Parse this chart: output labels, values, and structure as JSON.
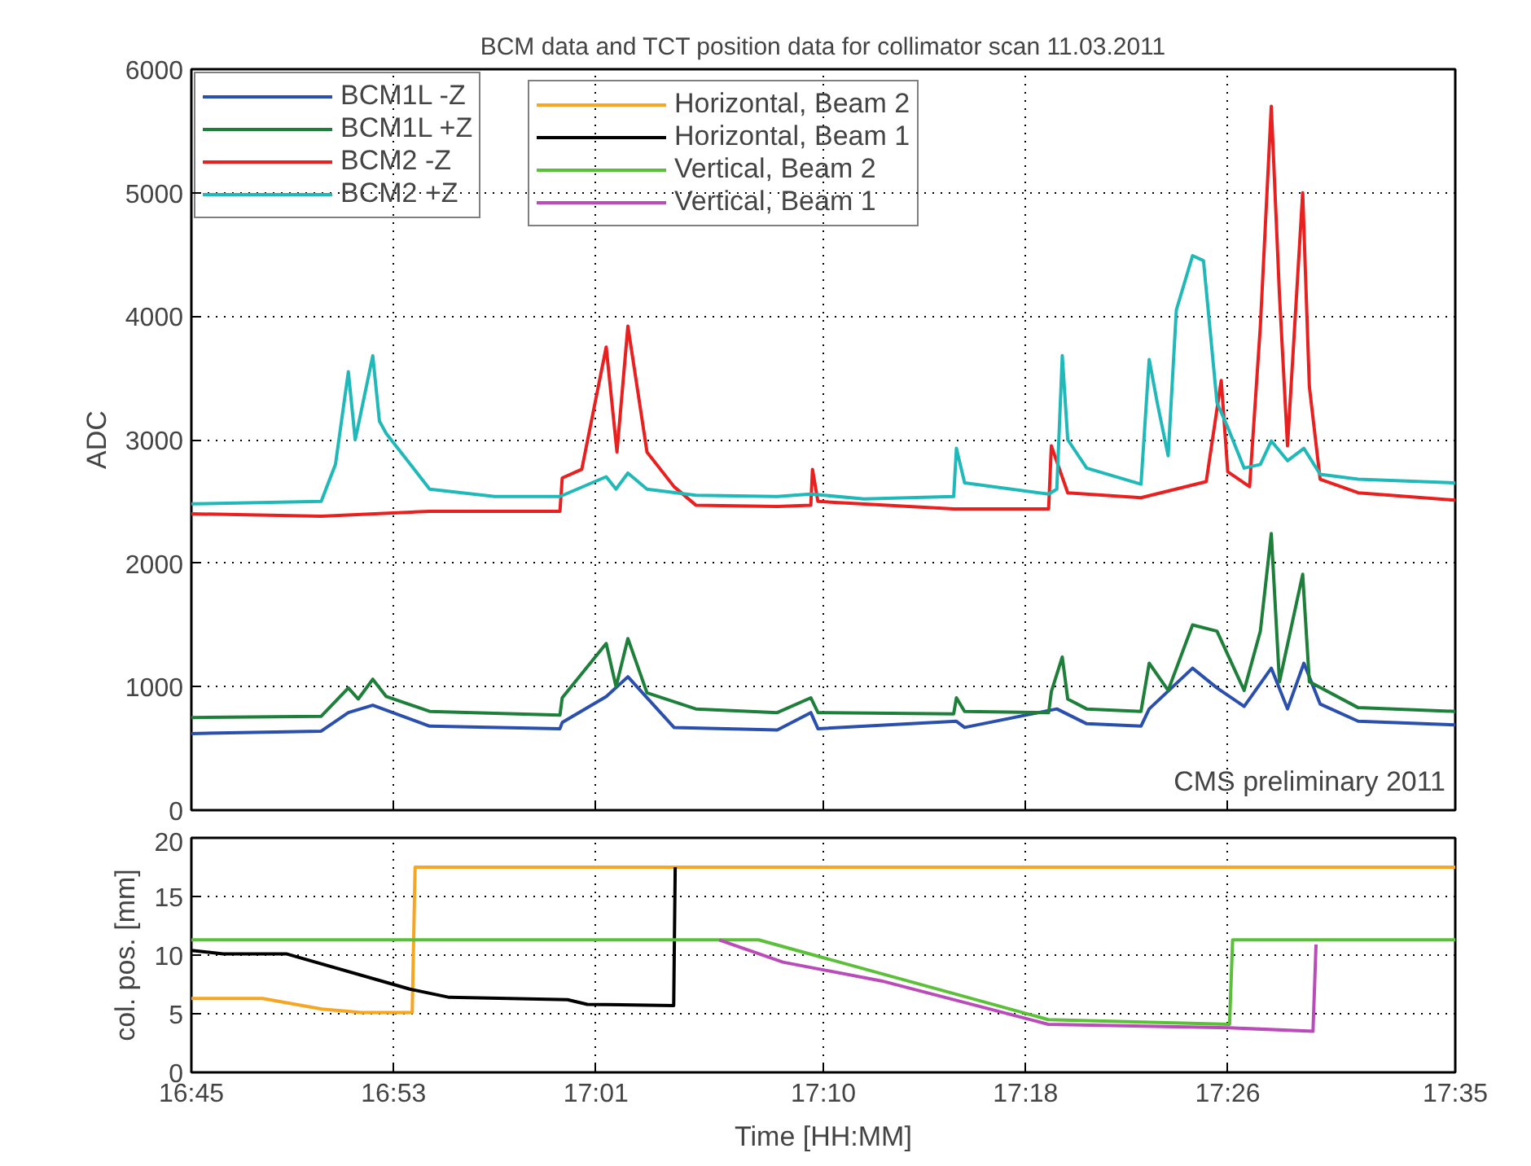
{
  "chart_data": [
    {
      "type": "line",
      "title": "BCM data and TCT position data for collimator scan 11.03.2011",
      "ylabel": "ADC",
      "annotations": [
        "CMS preliminary 2011"
      ],
      "xlim": [
        16.75,
        17.5833
      ],
      "xticks": [
        {
          "value": 16.75,
          "label": null
        },
        {
          "value": 16.8833,
          "label": null
        },
        {
          "value": 17.0167,
          "label": null
        },
        {
          "value": 17.1667,
          "label": null
        },
        {
          "value": 17.3,
          "label": null
        },
        {
          "value": 17.4333,
          "label": null
        },
        {
          "value": 17.5833,
          "label": null
        }
      ],
      "ylim": [
        0,
        6000
      ],
      "yticks": [
        0,
        1000,
        2000,
        3000,
        4000,
        5000,
        6000
      ],
      "tick_labels": "y",
      "grid": true,
      "legend": "top left",
      "line_style": "solid",
      "marker": "none",
      "series": [
        {
          "name": "BCM1L -Z",
          "color": "#2a4fad",
          "x": [
            16.75,
            16.8356,
            16.8535,
            16.8696,
            16.9071,
            16.993,
            16.9945,
            17.0235,
            17.0378,
            17.0682,
            17.1363,
            17.1584,
            17.1631,
            17.2544,
            17.2598,
            17.3206,
            17.3403,
            17.3761,
            17.3815,
            17.4101,
            17.4262,
            17.4441,
            17.462,
            17.4727,
            17.4835,
            17.4942,
            17.5193,
            17.5833
          ],
          "values": [
            620,
            640,
            790,
            850,
            680,
            660,
            710,
            920,
            1080,
            670,
            650,
            790,
            660,
            720,
            670,
            820,
            700,
            680,
            820,
            1150,
            990,
            840,
            1150,
            820,
            1190,
            860,
            720,
            690
          ]
        },
        {
          "name": "BCM1L +Z",
          "color": "#1e7f3a",
          "x": [
            16.75,
            16.8356,
            16.8535,
            16.86,
            16.8696,
            16.8785,
            16.9071,
            16.993,
            16.9945,
            17.0235,
            17.03,
            17.0378,
            17.0504,
            17.0826,
            17.1363,
            17.1584,
            17.1631,
            17.2526,
            17.2544,
            17.2598,
            17.3152,
            17.317,
            17.3242,
            17.3278,
            17.3403,
            17.3761,
            17.3815,
            17.394,
            17.4101,
            17.4262,
            17.4441,
            17.4548,
            17.462,
            17.4674,
            17.4827,
            17.4871,
            17.5193,
            17.5833
          ],
          "values": [
            750,
            760,
            990,
            900,
            1060,
            920,
            800,
            770,
            910,
            1350,
            1000,
            1390,
            950,
            820,
            790,
            910,
            790,
            780,
            910,
            800,
            790,
            960,
            1240,
            900,
            820,
            800,
            1190,
            970,
            1500,
            1450,
            970,
            1450,
            2240,
            1040,
            1910,
            1040,
            830,
            800
          ]
        },
        {
          "name": "BCM2 -Z",
          "color": "#e82020",
          "x": [
            16.75,
            16.8356,
            16.9071,
            16.993,
            16.9945,
            17.0074,
            17.0235,
            17.0306,
            17.0378,
            17.0504,
            17.0682,
            17.0826,
            17.1363,
            17.1584,
            17.1595,
            17.1631,
            17.2526,
            17.3152,
            17.317,
            17.3278,
            17.3761,
            17.4191,
            17.429,
            17.4333,
            17.4477,
            17.4548,
            17.462,
            17.4674,
            17.4727,
            17.4827,
            17.4871,
            17.4942,
            17.5193,
            17.5833
          ],
          "values": [
            2400,
            2380,
            2420,
            2420,
            2690,
            2760,
            3750,
            2900,
            3920,
            2900,
            2620,
            2470,
            2460,
            2470,
            2760,
            2500,
            2440,
            2440,
            2950,
            2570,
            2530,
            2660,
            3480,
            2740,
            2620,
            3920,
            5700,
            4170,
            2950,
            5000,
            3430,
            2680,
            2570,
            2510
          ]
        },
        {
          "name": "BCM2 +Z",
          "color": "#20b8b8",
          "x": [
            16.75,
            16.8356,
            16.845,
            16.8535,
            16.858,
            16.8606,
            16.8696,
            16.874,
            16.8785,
            16.9071,
            16.95,
            16.993,
            17.0235,
            17.03,
            17.0378,
            17.0504,
            17.0826,
            17.1363,
            17.1584,
            17.1935,
            17.2526,
            17.2544,
            17.2598,
            17.3152,
            17.3206,
            17.3242,
            17.3278,
            17.3403,
            17.3761,
            17.3815,
            17.3868,
            17.394,
            17.3994,
            17.4101,
            17.4173,
            17.4262,
            17.4333,
            17.4441,
            17.4548,
            17.462,
            17.4727,
            17.4835,
            17.4942,
            17.5193,
            17.5833
          ],
          "values": [
            2480,
            2500,
            2800,
            3550,
            3000,
            3150,
            3680,
            3150,
            3050,
            2600,
            2540,
            2540,
            2700,
            2600,
            2730,
            2600,
            2550,
            2540,
            2560,
            2520,
            2540,
            2930,
            2650,
            2560,
            2600,
            3680,
            3000,
            2770,
            2640,
            3650,
            3300,
            2870,
            4050,
            4490,
            4450,
            3300,
            3100,
            2770,
            2800,
            2990,
            2830,
            2930,
            2720,
            2680,
            2650
          ]
        }
      ]
    },
    {
      "type": "line",
      "xlabel": "Time [HH:MM]",
      "ylabel": "col. pos. [mm]",
      "xlim": [
        16.75,
        17.5833
      ],
      "xticks": [
        {
          "value": 16.75,
          "label": "16:45"
        },
        {
          "value": 16.8833,
          "label": "16:53"
        },
        {
          "value": 17.0167,
          "label": "17:01"
        },
        {
          "value": 17.1667,
          "label": "17:10"
        },
        {
          "value": 17.3,
          "label": "17:18"
        },
        {
          "value": 17.4333,
          "label": "17:26"
        },
        {
          "value": 17.5833,
          "label": "17:35"
        }
      ],
      "ylim": [
        0,
        20
      ],
      "yticks": [
        0,
        5,
        10,
        15,
        20
      ],
      "grid": true,
      "legend": "top",
      "line_style": "solid",
      "marker": "none",
      "series": [
        {
          "name": "Horizontal, Beam 2",
          "color": "#f5a623",
          "x": [
            16.75,
            16.797,
            16.836,
            16.862,
            16.8956,
            16.8975,
            17.5833
          ],
          "values": [
            6.3,
            6.3,
            5.4,
            5.1,
            5.1,
            17.5,
            17.5
          ]
        },
        {
          "name": "Horizontal, Beam 1",
          "color": "#000000",
          "x": [
            16.75,
            16.771,
            16.813,
            16.894,
            16.92,
            16.998,
            17.011,
            17.068,
            17.069
          ],
          "values": [
            10.4,
            10.1,
            10.1,
            7.1,
            6.4,
            6.2,
            5.8,
            5.7,
            17.5
          ]
        },
        {
          "name": "Vertical, Beam 2",
          "color": "#5cbf3a",
          "x": [
            16.75,
            17.124,
            17.315,
            17.4345,
            17.4365,
            17.5833
          ],
          "values": [
            11.3,
            11.3,
            4.5,
            4.1,
            11.3,
            11.3
          ]
        },
        {
          "name": "Vertical, Beam 1",
          "color": "#b94cb8",
          "x": [
            17.098,
            17.14,
            17.205,
            17.315,
            17.4345,
            17.4895,
            17.4915
          ],
          "values": [
            11.3,
            9.4,
            7.8,
            4.1,
            3.8,
            3.5,
            10.9
          ]
        }
      ]
    }
  ]
}
